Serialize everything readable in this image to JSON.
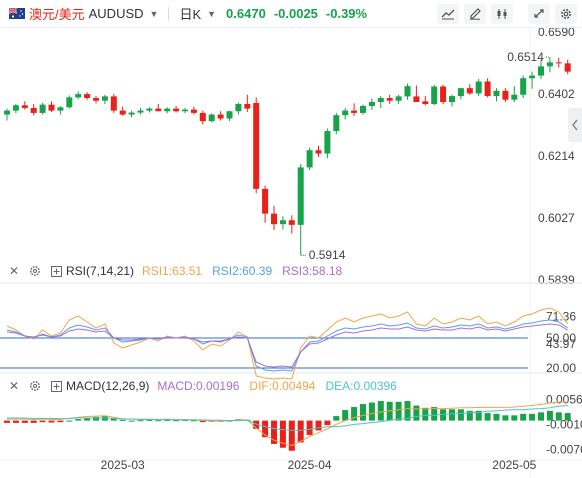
{
  "header": {
    "symbol_cn": "澳元/美元",
    "symbol": "AUDUSD",
    "period": "日K",
    "last_price": "0.6470",
    "change": "-0.0025",
    "change_pct": "-0.39%"
  },
  "tools": [
    "line-tool-icon",
    "pen-tool-icon",
    "candle-type-icon",
    "fullscreen-icon",
    "settings-icon"
  ],
  "colors": {
    "up": "#16a34a",
    "down": "#e8211a",
    "rsi1": "#f0a64a",
    "rsi2": "#5aa0e6",
    "rsi3": "#a66fd4",
    "macd_dif": "#f0a64a",
    "macd_dea": "#4cc4c8",
    "hline": "#2f6fd1",
    "macd_label": "#a66fd4"
  },
  "chart_data": {
    "type": "candlestick",
    "dates": [
      "2025-02-12",
      "2025-02-13",
      "2025-02-14",
      "2025-02-17",
      "2025-02-18",
      "2025-02-19",
      "2025-02-20",
      "2025-02-21",
      "2025-02-24",
      "2025-02-25",
      "2025-02-26",
      "2025-02-27",
      "2025-02-28",
      "2025-03-03",
      "2025-03-04",
      "2025-03-05",
      "2025-03-06",
      "2025-03-07",
      "2025-03-10",
      "2025-03-11",
      "2025-03-12",
      "2025-03-13",
      "2025-03-14",
      "2025-03-17",
      "2025-03-18",
      "2025-03-19",
      "2025-03-20",
      "2025-03-21",
      "2025-03-24",
      "2025-03-25",
      "2025-03-26",
      "2025-03-27",
      "2025-03-28",
      "2025-03-31",
      "2025-04-01",
      "2025-04-02",
      "2025-04-03",
      "2025-04-04",
      "2025-04-07",
      "2025-04-08",
      "2025-04-09",
      "2025-04-10",
      "2025-04-11",
      "2025-04-14",
      "2025-04-15",
      "2025-04-16",
      "2025-04-17",
      "2025-04-18",
      "2025-04-21",
      "2025-04-22",
      "2025-04-23",
      "2025-04-24",
      "2025-04-25",
      "2025-04-28",
      "2025-04-29",
      "2025-04-30",
      "2025-05-01",
      "2025-05-02",
      "2025-05-05",
      "2025-05-06",
      "2025-05-07",
      "2025-05-08",
      "2025-05-09",
      "2025-05-12"
    ],
    "ohlc": [
      [
        0.634,
        0.6358,
        0.6322,
        0.6352
      ],
      [
        0.6352,
        0.6372,
        0.6344,
        0.6368
      ],
      [
        0.6368,
        0.638,
        0.6355,
        0.636
      ],
      [
        0.636,
        0.6372,
        0.6338,
        0.6345
      ],
      [
        0.6345,
        0.6375,
        0.634,
        0.637
      ],
      [
        0.637,
        0.638,
        0.6348,
        0.6352
      ],
      [
        0.6352,
        0.6365,
        0.634,
        0.6362
      ],
      [
        0.6362,
        0.6398,
        0.6358,
        0.6392
      ],
      [
        0.6392,
        0.641,
        0.6386,
        0.6402
      ],
      [
        0.6402,
        0.6408,
        0.6385,
        0.639
      ],
      [
        0.639,
        0.6396,
        0.6374,
        0.6382
      ],
      [
        0.6382,
        0.64,
        0.6372,
        0.6395
      ],
      [
        0.6395,
        0.6402,
        0.6345,
        0.6352
      ],
      [
        0.6352,
        0.6364,
        0.6336,
        0.634
      ],
      [
        0.634,
        0.6352,
        0.6332,
        0.6346
      ],
      [
        0.6346,
        0.636,
        0.634,
        0.6352
      ],
      [
        0.6352,
        0.6362,
        0.6346,
        0.6358
      ],
      [
        0.6358,
        0.6372,
        0.635,
        0.635
      ],
      [
        0.635,
        0.6362,
        0.6344,
        0.6358
      ],
      [
        0.6358,
        0.6366,
        0.6346,
        0.635
      ],
      [
        0.635,
        0.636,
        0.6344,
        0.6355
      ],
      [
        0.6355,
        0.6364,
        0.634,
        0.6345
      ],
      [
        0.6345,
        0.6352,
        0.631,
        0.632
      ],
      [
        0.632,
        0.6344,
        0.6316,
        0.634
      ],
      [
        0.634,
        0.635,
        0.6322,
        0.6328
      ],
      [
        0.6328,
        0.6352,
        0.632,
        0.635
      ],
      [
        0.635,
        0.6376,
        0.634,
        0.6372
      ],
      [
        0.6372,
        0.64,
        0.6348,
        0.6358
      ],
      [
        0.6375,
        0.6392,
        0.6102,
        0.6115
      ],
      [
        0.6115,
        0.6125,
        0.6012,
        0.604
      ],
      [
        0.604,
        0.6064,
        0.599,
        0.6008
      ],
      [
        0.6008,
        0.6032,
        0.5992,
        0.602
      ],
      [
        0.602,
        0.6035,
        0.598,
        0.6006
      ],
      [
        0.6006,
        0.619,
        0.5914,
        0.618
      ],
      [
        0.618,
        0.624,
        0.6172,
        0.6232
      ],
      [
        0.6232,
        0.6246,
        0.6212,
        0.6222
      ],
      [
        0.6222,
        0.6298,
        0.6208,
        0.629
      ],
      [
        0.629,
        0.6345,
        0.628,
        0.6338
      ],
      [
        0.6338,
        0.636,
        0.6325,
        0.6352
      ],
      [
        0.6352,
        0.6374,
        0.6336,
        0.6345
      ],
      [
        0.6345,
        0.637,
        0.634,
        0.6366
      ],
      [
        0.6366,
        0.6388,
        0.6354,
        0.6378
      ],
      [
        0.6378,
        0.6396,
        0.636,
        0.639
      ],
      [
        0.639,
        0.64,
        0.6372,
        0.6382
      ],
      [
        0.6382,
        0.64,
        0.6372,
        0.6395
      ],
      [
        0.6395,
        0.6434,
        0.6385,
        0.6426
      ],
      [
        0.6395,
        0.6428,
        0.638,
        0.6378
      ],
      [
        0.638,
        0.6396,
        0.6368,
        0.6372
      ],
      [
        0.6372,
        0.643,
        0.6368,
        0.6425
      ],
      [
        0.6425,
        0.643,
        0.6372,
        0.6378
      ],
      [
        0.6378,
        0.64,
        0.6364,
        0.6396
      ],
      [
        0.6396,
        0.642,
        0.6386,
        0.642
      ],
      [
        0.642,
        0.6432,
        0.64,
        0.6404
      ],
      [
        0.6404,
        0.6448,
        0.6396,
        0.644
      ],
      [
        0.644,
        0.645,
        0.6392,
        0.6396
      ],
      [
        0.6396,
        0.642,
        0.638,
        0.6412
      ],
      [
        0.6412,
        0.642,
        0.6378,
        0.6385
      ],
      [
        0.6385,
        0.6426,
        0.6378,
        0.64
      ],
      [
        0.64,
        0.6458,
        0.639,
        0.645
      ],
      [
        0.645,
        0.647,
        0.6418,
        0.6458
      ],
      [
        0.6458,
        0.6506,
        0.6448,
        0.6486
      ],
      [
        0.6486,
        0.6514,
        0.6468,
        0.6498
      ],
      [
        0.6498,
        0.6512,
        0.6482,
        0.6495
      ],
      [
        0.6495,
        0.6506,
        0.6462,
        0.647
      ]
    ],
    "y_ticks": [
      "0.6590",
      "0.6402",
      "0.6214",
      "0.6027",
      "0.5839"
    ],
    "ylim": [
      0.5839,
      0.659
    ],
    "annotations": {
      "high": "0.6514",
      "low": "0.5914"
    },
    "x_ticks": [
      {
        "label": "2025-03",
        "date": "2025-03-03"
      },
      {
        "label": "2025-04",
        "date": "2025-04-01"
      },
      {
        "label": "2025-05",
        "date": "2025-05-02"
      }
    ],
    "rsi": {
      "title": "RSI(7,14,21)",
      "labels": [
        "RSI1:63.51",
        "RSI2:60.39",
        "RSI3:58.18"
      ],
      "y_ticks": [
        "71.36",
        "50.00",
        "43.97",
        "20.00"
      ],
      "ylim": [
        20,
        80
      ],
      "hlines": [
        50,
        20
      ],
      "rsi1": [
        62,
        58,
        52,
        49,
        58,
        52,
        55,
        68,
        72,
        66,
        60,
        64,
        45,
        40,
        43,
        46,
        50,
        47,
        52,
        50,
        52,
        47,
        38,
        44,
        42,
        48,
        56,
        51,
        12,
        10,
        9,
        10,
        9,
        40,
        52,
        50,
        58,
        66,
        70,
        66,
        70,
        72,
        74,
        70,
        72,
        76,
        64,
        62,
        70,
        64,
        66,
        70,
        68,
        72,
        64,
        66,
        62,
        66,
        72,
        74,
        78,
        80,
        76,
        64
      ],
      "rsi2": [
        58,
        56,
        52,
        50,
        54,
        51,
        53,
        60,
        63,
        61,
        58,
        60,
        50,
        46,
        47,
        48,
        50,
        49,
        51,
        50,
        51,
        49,
        44,
        47,
        46,
        49,
        53,
        51,
        22,
        18,
        17,
        18,
        17,
        36,
        46,
        47,
        52,
        57,
        60,
        59,
        61,
        62,
        64,
        62,
        63,
        65,
        60,
        59,
        62,
        60,
        61,
        63,
        62,
        64,
        60,
        61,
        59,
        61,
        64,
        65,
        67,
        68,
        66,
        60
      ],
      "rsi3": [
        56,
        55,
        52,
        51,
        53,
        51,
        52,
        57,
        59,
        58,
        56,
        57,
        50,
        48,
        48,
        49,
        50,
        49,
        50,
        50,
        50,
        49,
        46,
        47,
        47,
        49,
        51,
        50,
        26,
        22,
        21,
        22,
        21,
        36,
        44,
        45,
        49,
        53,
        56,
        55,
        57,
        58,
        60,
        59,
        59,
        61,
        58,
        57,
        59,
        58,
        58,
        60,
        59,
        61,
        58,
        59,
        57,
        59,
        61,
        62,
        63,
        64,
        63,
        58
      ]
    },
    "macd": {
      "title": "MACD(12,26,9)",
      "labels": [
        "MACD:0.00196",
        "DIF:0.00494",
        "DEA:0.00396"
      ],
      "y_ticks": [
        "0.00561",
        "-0.00100",
        "-0.00761"
      ],
      "ylim": [
        -0.0094,
        0.0076
      ],
      "macd": [
        -0.0006,
        -0.0006,
        -0.0006,
        -0.0006,
        -0.0004,
        -0.0005,
        -0.0004,
        0.0,
        0.0004,
        0.0008,
        0.001,
        0.0012,
        0.0006,
        0.0002,
        0.0,
        0.0001,
        0.0002,
        0.0001,
        0.0002,
        0.0001,
        0.0002,
        0.0001,
        -0.0004,
        -0.0002,
        -0.0003,
        0.0,
        0.0004,
        0.0002,
        -0.0022,
        -0.0044,
        -0.0062,
        -0.0072,
        -0.008,
        -0.0058,
        -0.0038,
        -0.0026,
        -0.0012,
        0.0012,
        0.0028,
        0.0036,
        0.0044,
        0.0048,
        0.0052,
        0.005,
        0.005,
        0.0052,
        0.004,
        0.0034,
        0.0036,
        0.003,
        0.003,
        0.003,
        0.0026,
        0.0026,
        0.002,
        0.0018,
        0.0014,
        0.0014,
        0.0018,
        0.0018,
        0.0022,
        0.0026,
        0.0022,
        0.002
      ],
      "dif": [
        0.0004,
        0.0004,
        0.0004,
        0.0003,
        0.0004,
        0.0003,
        0.0003,
        0.0006,
        0.0009,
        0.0011,
        0.0012,
        0.0013,
        0.0009,
        0.0005,
        0.0004,
        0.0004,
        0.0004,
        0.0003,
        0.0004,
        0.0003,
        0.0003,
        0.0002,
        0.0,
        0.0,
        -0.0001,
        0.0,
        0.0002,
        0.0002,
        -0.002,
        -0.0038,
        -0.0052,
        -0.006,
        -0.0066,
        -0.0055,
        -0.0042,
        -0.0032,
        -0.0022,
        -0.001,
        0.0,
        0.0008,
        0.0014,
        0.0019,
        0.0023,
        0.0026,
        0.0029,
        0.0032,
        0.0031,
        0.0031,
        0.0032,
        0.0032,
        0.0033,
        0.0034,
        0.0034,
        0.0035,
        0.0035,
        0.0035,
        0.0035,
        0.0036,
        0.0038,
        0.004,
        0.0043,
        0.0047,
        0.0049,
        0.0049
      ],
      "dea": [
        0.0007,
        0.0007,
        0.0007,
        0.0006,
        0.0006,
        0.0006,
        0.0005,
        0.0006,
        0.0007,
        0.0007,
        0.0007,
        0.0007,
        0.0006,
        0.0004,
        0.0004,
        0.0003,
        0.0003,
        0.0003,
        0.0003,
        0.0002,
        0.0002,
        0.0002,
        0.0002,
        0.0001,
        0.0001,
        0.0,
        0.0,
        0.0001,
        -0.0009,
        -0.0016,
        -0.0021,
        -0.0024,
        -0.0026,
        -0.0026,
        -0.0023,
        -0.0019,
        -0.0016,
        -0.0016,
        -0.0014,
        -0.001,
        -0.0008,
        -0.0005,
        -0.0003,
        0.0001,
        0.0004,
        0.0006,
        0.0011,
        0.0014,
        0.0014,
        0.0017,
        0.0018,
        0.0019,
        0.0021,
        0.0022,
        0.0025,
        0.0026,
        0.0028,
        0.0029,
        0.0029,
        0.0031,
        0.0032,
        0.0034,
        0.0038,
        0.004
      ]
    }
  }
}
